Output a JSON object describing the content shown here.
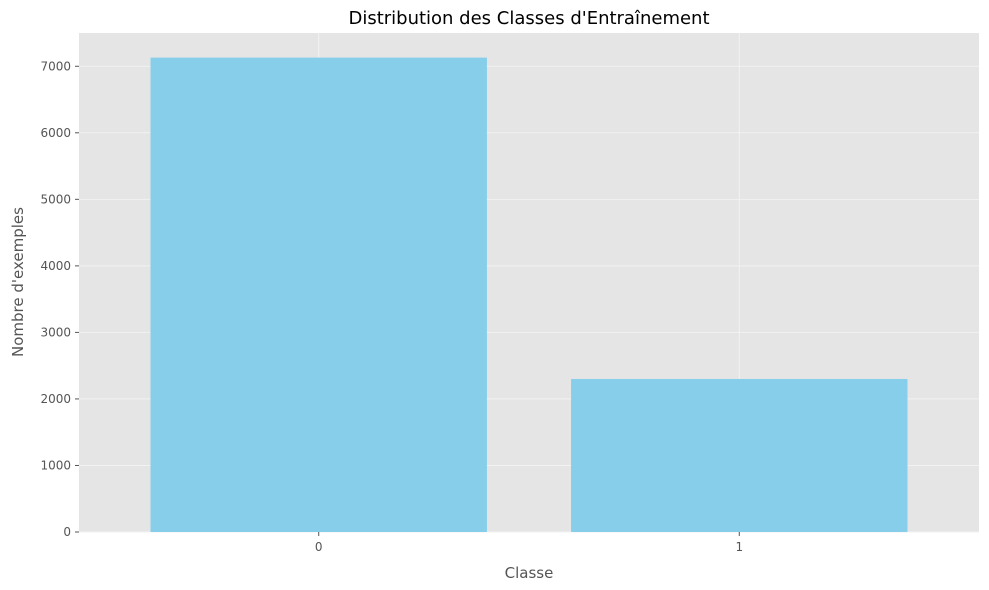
{
  "chart_data": {
    "type": "bar",
    "title": "Distribution des Classes d'Entraînement",
    "xlabel": "Classe",
    "ylabel": "Nombre d'exemples",
    "categories": [
      "0",
      "1"
    ],
    "values": [
      7130,
      2300
    ],
    "ylim": [
      0,
      7500
    ],
    "yticks": [
      0,
      1000,
      2000,
      3000,
      4000,
      5000,
      6000,
      7000
    ],
    "grid": true,
    "legend": "none",
    "colors": {
      "bar": "#87ceeb",
      "plot_background": "#e5e5e5",
      "grid": "#f2f2f2"
    }
  }
}
